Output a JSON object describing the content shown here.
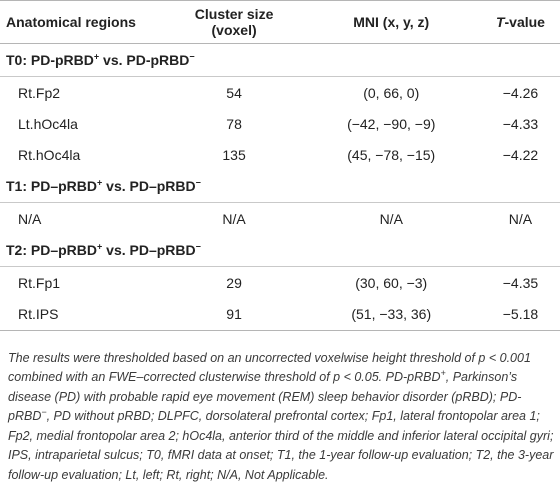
{
  "table": {
    "headers": {
      "region": "Anatomical regions",
      "cluster": "Cluster size (voxel)",
      "mni": "MNI (x, y, z)",
      "t_italic": "T",
      "t_suffix": "-value"
    },
    "sections": [
      {
        "title_pre": "T0: PD-pRBD",
        "sup1": "+",
        "title_mid": " vs. PD-pRBD",
        "sup2": "−",
        "rows": [
          {
            "region": "Rt.Fp2",
            "cluster": "54",
            "mni": "(0, 66, 0)",
            "t": "−4.26"
          },
          {
            "region": "Lt.hOc4la",
            "cluster": "78",
            "mni": "(−42, −90, −9)",
            "t": "−4.33"
          },
          {
            "region": "Rt.hOc4la",
            "cluster": "135",
            "mni": "(45, −78, −15)",
            "t": "−4.22"
          }
        ]
      },
      {
        "title_pre": "T1: PD–pRBD",
        "sup1": "+",
        "title_mid": " vs. PD–pRBD",
        "sup2": "−",
        "rows": [
          {
            "region": "N/A",
            "cluster": "N/A",
            "mni": "N/A",
            "t": "N/A"
          }
        ]
      },
      {
        "title_pre": "T2: PD–pRBD",
        "sup1": "+",
        "title_mid": " vs. PD–pRBD",
        "sup2": "−",
        "rows": [
          {
            "region": "Rt.Fp1",
            "cluster": "29",
            "mni": "(30, 60, −3)",
            "t": "−4.35"
          },
          {
            "region": "Rt.IPS",
            "cluster": "91",
            "mni": "(51, −33, 36)",
            "t": "−5.18"
          }
        ]
      }
    ]
  },
  "footnote": {
    "p1": "The results were thresholded based on an uncorrected voxelwise height threshold of p < 0.001 combined with an FWE–corrected clusterwise threshold of p < 0.05. PD-pRBD",
    "s1": "+",
    "p2": ", Parkinson’s disease (PD) with probable rapid eye movement (REM) sleep behavior disorder (pRBD); PD-pRBD",
    "s2": "−",
    "p3": ", PD without pRBD; DLPFC, dorsolateral prefrontal cortex; Fp1, lateral frontopolar area 1; Fp2, medial frontopolar area 2; hOc4la, anterior third of the middle and inferior lateral occipital gyri; IPS, intraparietal sulcus; T0, fMRI data at onset; T1, the 1-year follow-up evaluation; T2, the 3-year follow-up evaluation; Lt, left; Rt, right; N/A, Not Applicable."
  }
}
